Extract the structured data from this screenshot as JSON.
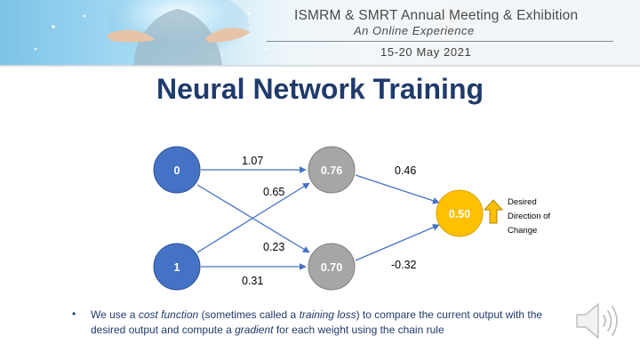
{
  "header": {
    "meeting_title": "ISMRM & SMRT Annual Meeting & Exhibition",
    "meeting_subtitle": "An Online Experience",
    "meeting_dates": "15-20 May 2021"
  },
  "slide": {
    "title": "Neural Network Training"
  },
  "network": {
    "nodes": [
      {
        "id": "input-0",
        "label": "0",
        "color": "#4472c4"
      },
      {
        "id": "input-1",
        "label": "1",
        "color": "#4472c4"
      },
      {
        "id": "hidden-top",
        "label": "0.76",
        "color": "#a6a6a6"
      },
      {
        "id": "hidden-bottom",
        "label": "0.70",
        "color": "#a6a6a6"
      },
      {
        "id": "output",
        "label": "0.50",
        "color": "#ffc000"
      }
    ],
    "edges": [
      {
        "from": "input-0",
        "to": "hidden-top",
        "weight": "1.07"
      },
      {
        "from": "input-1",
        "to": "hidden-top",
        "weight": "0.65"
      },
      {
        "from": "input-0",
        "to": "hidden-bottom",
        "weight": "0.23"
      },
      {
        "from": "input-1",
        "to": "hidden-bottom",
        "weight": "0.31"
      },
      {
        "from": "hidden-top",
        "to": "output",
        "weight": "0.46"
      },
      {
        "from": "hidden-bottom",
        "to": "output",
        "weight": "-0.32"
      }
    ],
    "desired_change": {
      "lines": [
        "Desired",
        "Direction of",
        "Change"
      ],
      "arrow_color": "#ffc000",
      "arrow_direction": "up"
    }
  },
  "body": {
    "bullet_symbol": "•",
    "bullet_parts": [
      {
        "text": "We use a ",
        "style": "normal"
      },
      {
        "text": "cost function",
        "style": "italic"
      },
      {
        "text": " (sometimes called a ",
        "style": "normal"
      },
      {
        "text": "training loss",
        "style": "italic"
      },
      {
        "text": ") to compare the current output with the desired output and compute a ",
        "style": "normal"
      },
      {
        "text": "gradient",
        "style": "italic"
      },
      {
        "text": " for each weight using the chain rule",
        "style": "normal"
      }
    ]
  },
  "colors": {
    "title": "#1f3a6b",
    "edge": "#4472c4"
  },
  "icons": {
    "speaker": "speaker-icon",
    "up_arrow": "up-arrow-icon"
  }
}
